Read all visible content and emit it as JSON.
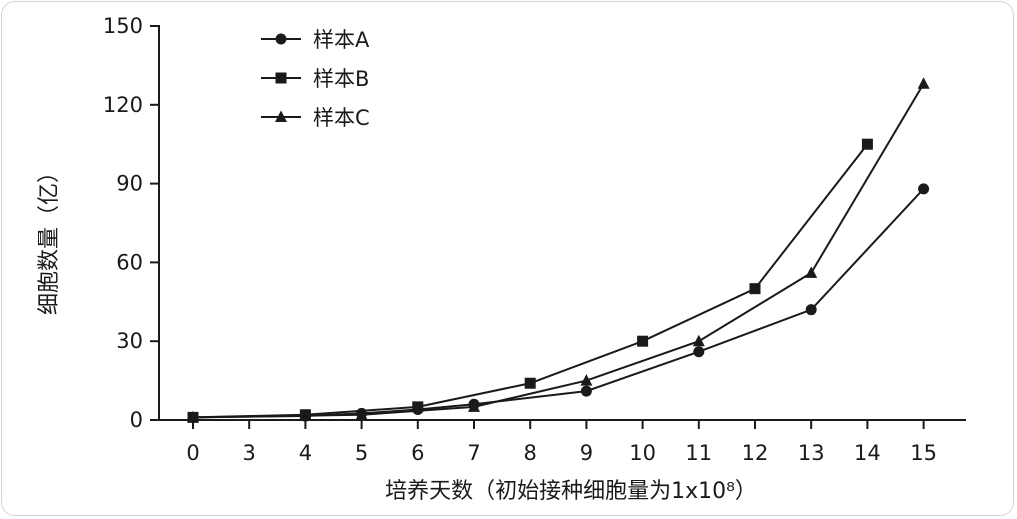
{
  "chart_data": {
    "type": "line",
    "title": "",
    "xlabel": "培养天数（初始接种细胞量为1x10⁸）",
    "ylabel": "细胞数量（亿）",
    "categories": [
      "0",
      "3",
      "4",
      "5",
      "6",
      "7",
      "8",
      "9",
      "10",
      "11",
      "12",
      "13",
      "14",
      "15"
    ],
    "yticks": [
      "0",
      "30",
      "60",
      "90",
      "120",
      "150"
    ],
    "ylim": [
      0,
      150
    ],
    "grid": false,
    "legend_position": "top-left",
    "series": [
      {
        "name": "样本A",
        "marker": "circle",
        "points": [
          [
            0,
            1
          ],
          [
            4,
            1.5
          ],
          [
            5,
            2.5
          ],
          [
            6,
            4
          ],
          [
            7,
            6
          ],
          [
            9,
            11
          ],
          [
            11,
            26
          ],
          [
            13,
            42
          ],
          [
            15,
            88
          ]
        ]
      },
      {
        "name": "样本B",
        "marker": "square",
        "points": [
          [
            0,
            1
          ],
          [
            4,
            2
          ],
          [
            6,
            5
          ],
          [
            8,
            14
          ],
          [
            10,
            30
          ],
          [
            12,
            50
          ],
          [
            14,
            105
          ]
        ]
      },
      {
        "name": "样本C",
        "marker": "triangle",
        "points": [
          [
            0,
            1
          ],
          [
            5,
            2
          ],
          [
            7,
            5
          ],
          [
            9,
            15
          ],
          [
            11,
            30
          ],
          [
            13,
            56
          ],
          [
            15,
            128
          ]
        ]
      }
    ],
    "colors": {
      "line": "#1a1a1a",
      "axis": "#1a1a1a"
    }
  }
}
